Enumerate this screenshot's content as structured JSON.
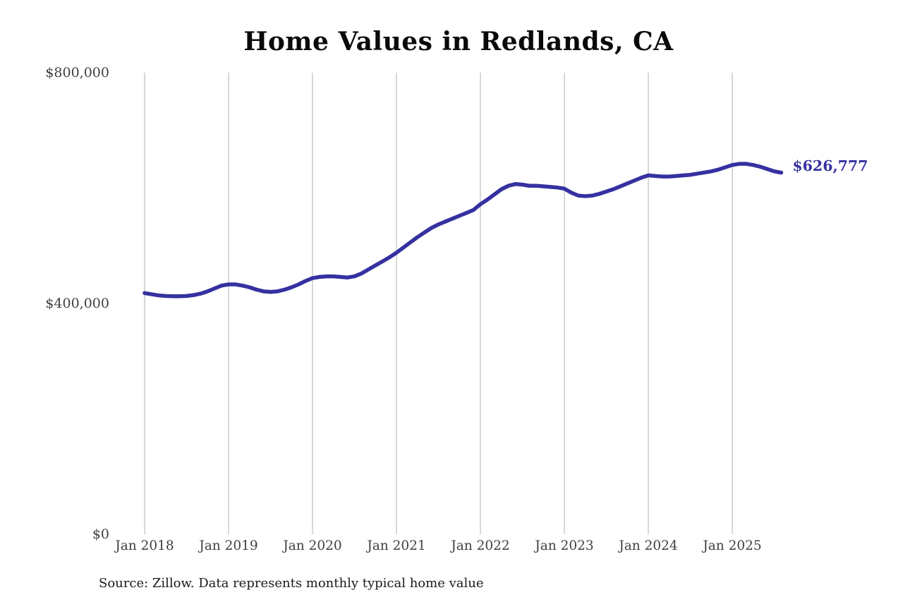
{
  "title": "Home Values in Redlands, CA",
  "source_note": "Source: Zillow. Data represents monthly typical home value",
  "end_label": "$626,777",
  "colors": {
    "line": "#3531a0",
    "end_label_text": "#3531a0",
    "grid": "#cccccc",
    "axis_text": "#404040",
    "title_text": "#0a0a0a",
    "source_text": "#1a1a1a",
    "background": "#ffffff"
  },
  "chart_data": {
    "type": "line",
    "title": "Home Values in Redlands, CA",
    "xlabel": "",
    "ylabel": "",
    "x_start": "2018-01",
    "x_interval": "monthly",
    "x_tick_labels": [
      "Jan 2018",
      "Jan 2019",
      "Jan 2020",
      "Jan 2021",
      "Jan 2022",
      "Jan 2023",
      "Jan 2024",
      "Jan 2025"
    ],
    "y_ticks": [
      {
        "label": "$0",
        "value": 0
      },
      {
        "label": "$400,000",
        "value": 400000
      },
      {
        "label": "$800,000",
        "value": 800000
      }
    ],
    "ylim": [
      0,
      800000
    ],
    "grid": "vertical-only",
    "legend": "none",
    "series": [
      {
        "name": "Monthly typical home value",
        "values": [
          418000,
          416000,
          414000,
          413000,
          412500,
          412500,
          413000,
          414500,
          417000,
          421000,
          426000,
          431000,
          433000,
          433000,
          431000,
          428000,
          424000,
          421000,
          420000,
          421000,
          424000,
          428000,
          433000,
          439000,
          444000,
          446000,
          447000,
          447000,
          446000,
          445000,
          447000,
          452000,
          459000,
          466000,
          473000,
          480000,
          488000,
          497000,
          506000,
          515000,
          523000,
          531000,
          537000,
          542000,
          547000,
          552000,
          557000,
          562000,
          572000,
          580000,
          589000,
          598000,
          604000,
          607000,
          606000,
          604000,
          604000,
          603000,
          602000,
          601000,
          599000,
          592000,
          587000,
          586000,
          587000,
          590000,
          594000,
          598000,
          603000,
          608000,
          613000,
          618000,
          622000,
          621000,
          620000,
          620000,
          621000,
          622000,
          623000,
          625000,
          627000,
          629000,
          632000,
          636000,
          640000,
          642000,
          642000,
          640000,
          637000,
          633000,
          629000,
          626777
        ]
      }
    ],
    "end_value": 626777,
    "end_value_label": "$626,777"
  }
}
